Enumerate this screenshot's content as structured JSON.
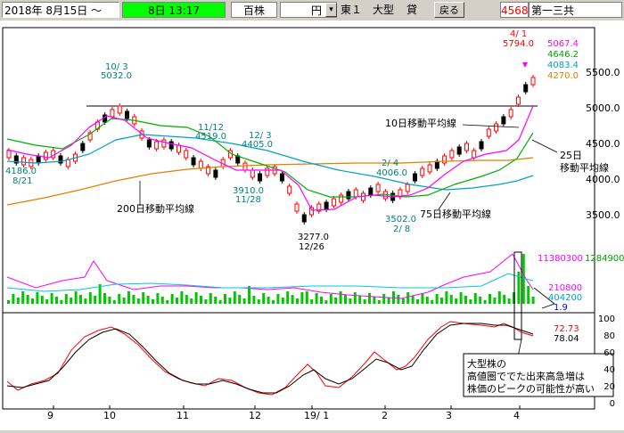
{
  "toolbar": {
    "start_date": "2018年  8月15日 ～",
    "end_date": "8日 13:17",
    "unit": "百株",
    "currency": "円",
    "dropdown_icon": "chevron-down-icon",
    "exchange": "東１",
    "size_class": "大型",
    "lending": "貸",
    "back_label": "戻る",
    "code": "4568",
    "company": "第一三共"
  },
  "colors": {
    "candle_up": "#ff0000",
    "candle_down": "#000000",
    "ma10": "#ff00ff",
    "ma25": "#00b000",
    "ma75": "#00a0c8",
    "ma200": "#e08000",
    "volume": "#00c800",
    "annotation_red": "#ff0000"
  },
  "price_axis": [
    "5500.0",
    "5000.0",
    "4500.0",
    "4000.0",
    "3500.0"
  ],
  "volume_axis": {
    "max_label_1": "11380300",
    "max_label_2": "1284900",
    "mid_label": "210800",
    "mid_label_2": "404200",
    "ratio": "1.9"
  },
  "oscillator_axis": [
    "100",
    "80",
    "60",
    "40",
    "20",
    "0"
  ],
  "oscillator_values": [
    "72.73",
    "78.04"
  ],
  "legend_values": [
    "5067.4",
    "4646.2",
    "4083.4",
    "4270.0"
  ],
  "x_axis": [
    "9",
    "10",
    "11",
    "12",
    "19/ 1",
    "2",
    "3",
    "4"
  ],
  "annotations": {
    "high_date": "4/ 1",
    "high_value": "5794.0",
    "oct_date": "10/ 3",
    "oct_value": "5032.0",
    "nov_date": "11/12",
    "nov_value": "4519.0",
    "dec_date": "12/ 3",
    "dec_value": "4405.0",
    "feb_date": "2/ 4",
    "feb_value": "4006.0",
    "aug_value": "4186.0",
    "aug_date": "8/21",
    "nov2_value": "3910.0",
    "nov2_date": "11/28",
    "low_value": "3277.0",
    "low_date": "12/26",
    "feb2_value": "3502.0",
    "feb2_date": "2/ 8",
    "ma10_label": "10日移動平均線",
    "ma25_label_1": "25日",
    "ma25_label_2": "移動平均線",
    "ma200_label": "200日移動平均線",
    "ma75_label": "75日移動平均線",
    "note_1": "大型株の",
    "note_2": "高値圏ででた出来高急増は",
    "note_3": "株価のピークの可能性が高い"
  }
}
